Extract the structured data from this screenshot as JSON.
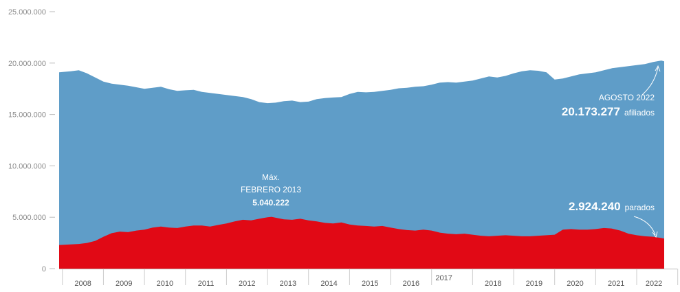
{
  "chart_data": {
    "type": "area",
    "title": "",
    "xlabel": "",
    "ylabel": "",
    "x_range": [
      2007.92,
      2022.67
    ],
    "ylim": [
      0,
      25000000
    ],
    "y_ticks": [
      {
        "value": 0,
        "label": "0"
      },
      {
        "value": 5000000,
        "label": "5.000.000"
      },
      {
        "value": 10000000,
        "label": "10.000.000"
      },
      {
        "value": 15000000,
        "label": "15.000.000"
      },
      {
        "value": 20000000,
        "label": "20.000.000"
      },
      {
        "value": 25000000,
        "label": "25.000.000"
      }
    ],
    "year_labels": [
      {
        "x": 2008.5,
        "label": "2008"
      },
      {
        "x": 2009.5,
        "label": "2009"
      },
      {
        "x": 2010.5,
        "label": "2010"
      },
      {
        "x": 2011.5,
        "label": "2011"
      },
      {
        "x": 2012.5,
        "label": "2012"
      },
      {
        "x": 2013.5,
        "label": "2013"
      },
      {
        "x": 2014.5,
        "label": "2014"
      },
      {
        "x": 2015.5,
        "label": "2015"
      },
      {
        "x": 2016.5,
        "label": "2016"
      },
      {
        "x": 2017.3,
        "label": "2017"
      },
      {
        "x": 2018.5,
        "label": "2018"
      },
      {
        "x": 2019.5,
        "label": "2019"
      },
      {
        "x": 2020.5,
        "label": "2020"
      },
      {
        "x": 2021.5,
        "label": "2021"
      },
      {
        "x": 2022.42,
        "label": "2022"
      }
    ],
    "grid": false,
    "legend": "none",
    "series": [
      {
        "colour": "#5f9dc8",
        "x": [
          2007.92,
          2008.2,
          2008.4,
          2008.6,
          2008.8,
          2009.0,
          2009.2,
          2009.4,
          2009.6,
          2009.8,
          2010.0,
          2010.2,
          2010.4,
          2010.6,
          2010.8,
          2011.0,
          2011.2,
          2011.4,
          2011.6,
          2011.8,
          2012.0,
          2012.2,
          2012.4,
          2012.6,
          2012.8,
          2013.0,
          2013.2,
          2013.4,
          2013.6,
          2013.8,
          2014.0,
          2014.2,
          2014.4,
          2014.6,
          2014.8,
          2015.0,
          2015.2,
          2015.4,
          2015.6,
          2015.8,
          2016.0,
          2016.2,
          2016.4,
          2016.6,
          2016.8,
          2017.0,
          2017.2,
          2017.4,
          2017.6,
          2017.8,
          2018.0,
          2018.2,
          2018.4,
          2018.6,
          2018.8,
          2019.0,
          2019.2,
          2019.4,
          2019.6,
          2019.8,
          2020.0,
          2020.2,
          2020.4,
          2020.6,
          2020.8,
          2021.0,
          2021.2,
          2021.4,
          2021.6,
          2021.8,
          2022.0,
          2022.2,
          2022.4,
          2022.6,
          2022.67
        ],
        "values": [
          19100000,
          19200000,
          19300000,
          19000000,
          18600000,
          18200000,
          18000000,
          17900000,
          17800000,
          17650000,
          17500000,
          17600000,
          17700000,
          17450000,
          17300000,
          17350000,
          17400000,
          17200000,
          17100000,
          17000000,
          16900000,
          16800000,
          16700000,
          16500000,
          16200000,
          16100000,
          16150000,
          16300000,
          16350000,
          16200000,
          16250000,
          16500000,
          16600000,
          16650000,
          16700000,
          17000000,
          17200000,
          17150000,
          17200000,
          17300000,
          17400000,
          17550000,
          17600000,
          17700000,
          17750000,
          17900000,
          18100000,
          18150000,
          18100000,
          18200000,
          18300000,
          18500000,
          18700000,
          18600000,
          18750000,
          19000000,
          19200000,
          19300000,
          19250000,
          19100000,
          18400000,
          18500000,
          18700000,
          18900000,
          19000000,
          19100000,
          19300000,
          19500000,
          19600000,
          19700000,
          19800000,
          19900000,
          20100000,
          20250000,
          20173277
        ]
      },
      {
        "colour": "#e10915",
        "x": [
          2007.92,
          2008.2,
          2008.4,
          2008.6,
          2008.8,
          2009.0,
          2009.2,
          2009.4,
          2009.6,
          2009.8,
          2010.0,
          2010.2,
          2010.4,
          2010.6,
          2010.8,
          2011.0,
          2011.2,
          2011.4,
          2011.6,
          2011.8,
          2012.0,
          2012.2,
          2012.4,
          2012.6,
          2012.8,
          2013.0,
          2013.1,
          2013.2,
          2013.4,
          2013.6,
          2013.8,
          2014.0,
          2014.2,
          2014.4,
          2014.6,
          2014.8,
          2015.0,
          2015.2,
          2015.4,
          2015.6,
          2015.8,
          2016.0,
          2016.2,
          2016.4,
          2016.6,
          2016.8,
          2017.0,
          2017.2,
          2017.4,
          2017.6,
          2017.8,
          2018.0,
          2018.2,
          2018.4,
          2018.6,
          2018.8,
          2019.0,
          2019.2,
          2019.4,
          2019.6,
          2019.8,
          2020.0,
          2020.2,
          2020.4,
          2020.6,
          2020.8,
          2021.0,
          2021.2,
          2021.4,
          2021.6,
          2021.8,
          2022.0,
          2022.2,
          2022.4,
          2022.6,
          2022.67
        ],
        "values": [
          2300000,
          2350000,
          2400000,
          2500000,
          2700000,
          3100000,
          3450000,
          3600000,
          3550000,
          3700000,
          3800000,
          4000000,
          4100000,
          4000000,
          3950000,
          4100000,
          4200000,
          4200000,
          4100000,
          4250000,
          4400000,
          4600000,
          4750000,
          4700000,
          4850000,
          5000000,
          5040222,
          4950000,
          4800000,
          4750000,
          4850000,
          4700000,
          4600000,
          4450000,
          4400000,
          4500000,
          4300000,
          4200000,
          4150000,
          4100000,
          4150000,
          4000000,
          3850000,
          3750000,
          3700000,
          3800000,
          3700000,
          3500000,
          3400000,
          3350000,
          3400000,
          3300000,
          3200000,
          3150000,
          3200000,
          3250000,
          3200000,
          3150000,
          3150000,
          3200000,
          3250000,
          3300000,
          3800000,
          3850000,
          3800000,
          3800000,
          3850000,
          3950000,
          3900000,
          3700000,
          3400000,
          3250000,
          3150000,
          3100000,
          2980000,
          2924240
        ]
      }
    ],
    "annotations": {
      "max": {
        "line1": "Máx.",
        "line2": "FEBRERO 2013",
        "line3": "5.040.222"
      },
      "afiliados": {
        "line1": "AGOSTO 2022",
        "value": "20.173.277",
        "unit": "afiliados"
      },
      "parados": {
        "value": "2.924.240",
        "unit": "parados"
      }
    }
  }
}
